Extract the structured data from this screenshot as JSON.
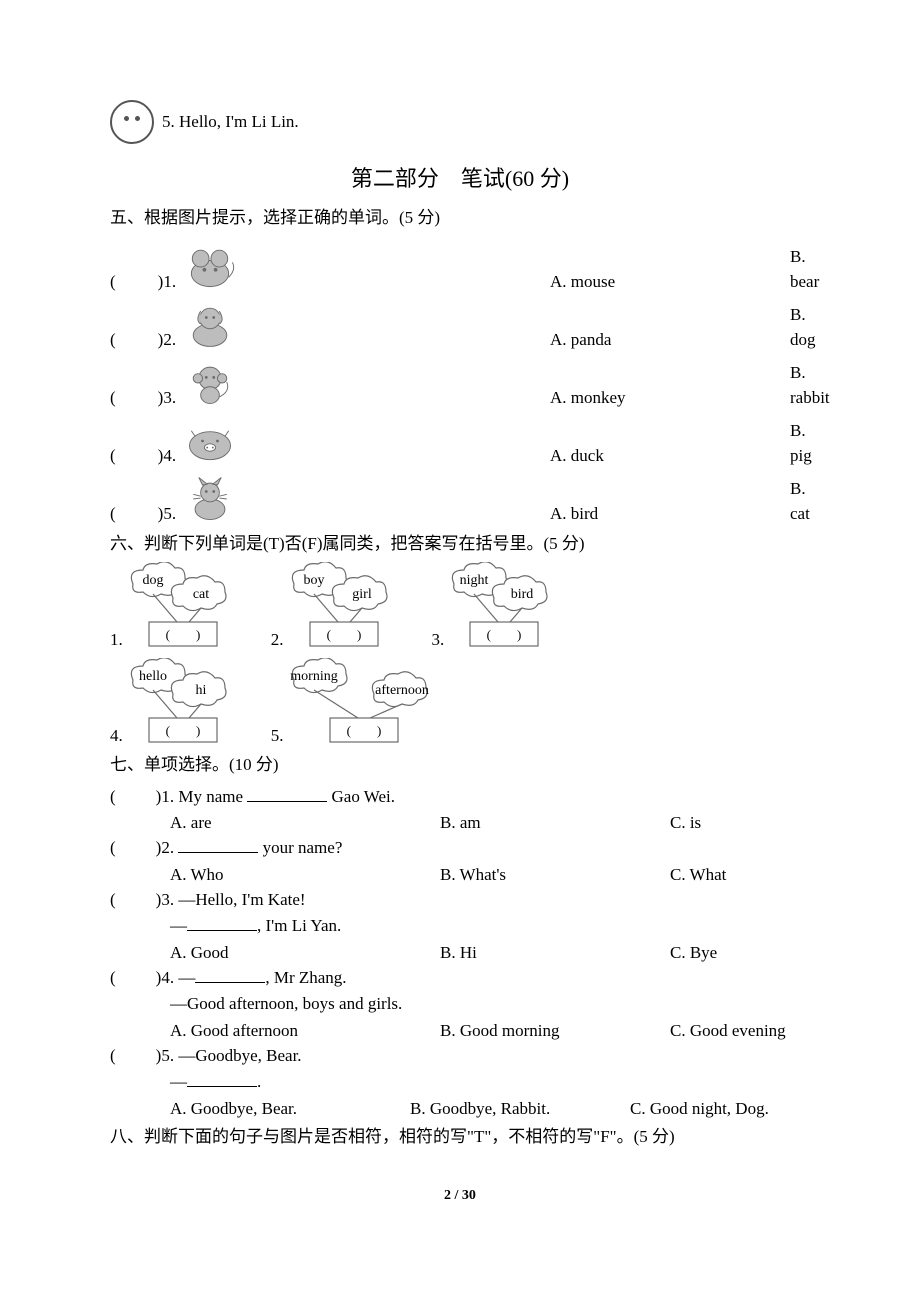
{
  "topline": {
    "num": "5.",
    "text": "Hello, I'm Li Lin."
  },
  "part_title": "第二部分　笔试(60 分)",
  "sec5": {
    "heading": "五、根据图片提示，选择正确的单词。(5 分)",
    "rows": [
      {
        "n": "1.",
        "icon": "mouse",
        "a": "A. mouse",
        "b": "B. bear"
      },
      {
        "n": "2.",
        "icon": "dog",
        "a": "A. panda",
        "b": "B. dog"
      },
      {
        "n": "3.",
        "icon": "monkey",
        "a": "A. monkey",
        "b": "B. rabbit"
      },
      {
        "n": "4.",
        "icon": "pig",
        "a": "A. duck",
        "b": "B. pig"
      },
      {
        "n": "5.",
        "icon": "cat",
        "a": "A. bird",
        "b": "B. cat"
      }
    ]
  },
  "sec6": {
    "heading": "六、判断下列单词是(T)否(F)属同类，把答案写在括号里。(5 分)",
    "items": [
      {
        "n": "1.",
        "w1": "dog",
        "w2": "cat"
      },
      {
        "n": "2.",
        "w1": "boy",
        "w2": "girl"
      },
      {
        "n": "3.",
        "w1": "night",
        "w2": "bird"
      },
      {
        "n": "4.",
        "w1": "hello",
        "w2": "hi"
      },
      {
        "n": "5.",
        "w1": "morning",
        "w2": "afternoon"
      }
    ]
  },
  "sec7": {
    "heading": "七、单项选择。(10 分)",
    "q1": {
      "stem_pre": ")1. My name ",
      "stem_post": " Gao Wei.",
      "a": "A. are",
      "b": "B. am",
      "c": "C. is"
    },
    "q2": {
      "stem_pre": ")2. ",
      "stem_post": " your name?",
      "a": "A. Who",
      "b": "B. What's",
      "c": "C. What"
    },
    "q3": {
      "l1": ")3. —Hello, I'm Kate!",
      "l2_pre": "—",
      "l2_post": ", I'm Li Yan.",
      "a": "A. Good",
      "b": "B. Hi",
      "c": "C. Bye"
    },
    "q4": {
      "l1_pre": ")4. —",
      "l1_post": ", Mr Zhang.",
      "l2": "—Good afternoon, boys and girls.",
      "a": "A. Good afternoon",
      "b": "B. Good morning",
      "c": "C. Good evening"
    },
    "q5": {
      "l1": ")5. —Goodbye, Bear.",
      "l2": "—",
      "a": "A. Goodbye, Bear.",
      "b": "B. Goodbye, Rabbit.",
      "c": "C. Good night, Dog."
    }
  },
  "sec8_heading": "八、判断下面的句子与图片是否相符，相符的写\"T\"，不相符的写\"F\"。(5 分)",
  "pagenum": "2 / 30",
  "colors": {
    "text": "#000000",
    "bg": "#ffffff",
    "icon_gray": "#bdbdbd",
    "icon_stroke": "#6b6b6b"
  }
}
